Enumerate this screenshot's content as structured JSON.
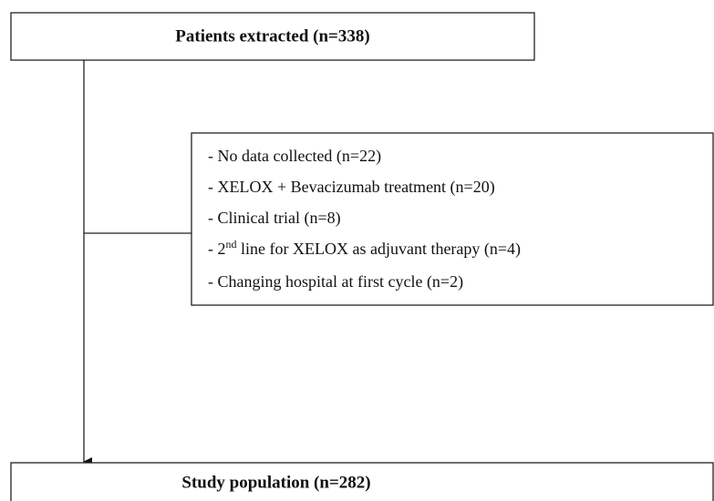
{
  "nodes": [
    {
      "label": "Patients extracted (n=338)"
    },
    {
      "label": "Study population (n=282)"
    }
  ],
  "exclusions": {
    "items": [
      "- No data collected (n=22)",
      "- XELOX + Bevacizumab treatment (n=20)",
      "- Clinical trial (n=8)",
      [
        "- 2",
        "nd",
        " line for XELOX as adjuvant therapy (n=4)"
      ],
      "- Changing hospital at first cycle (n=2)"
    ]
  }
}
